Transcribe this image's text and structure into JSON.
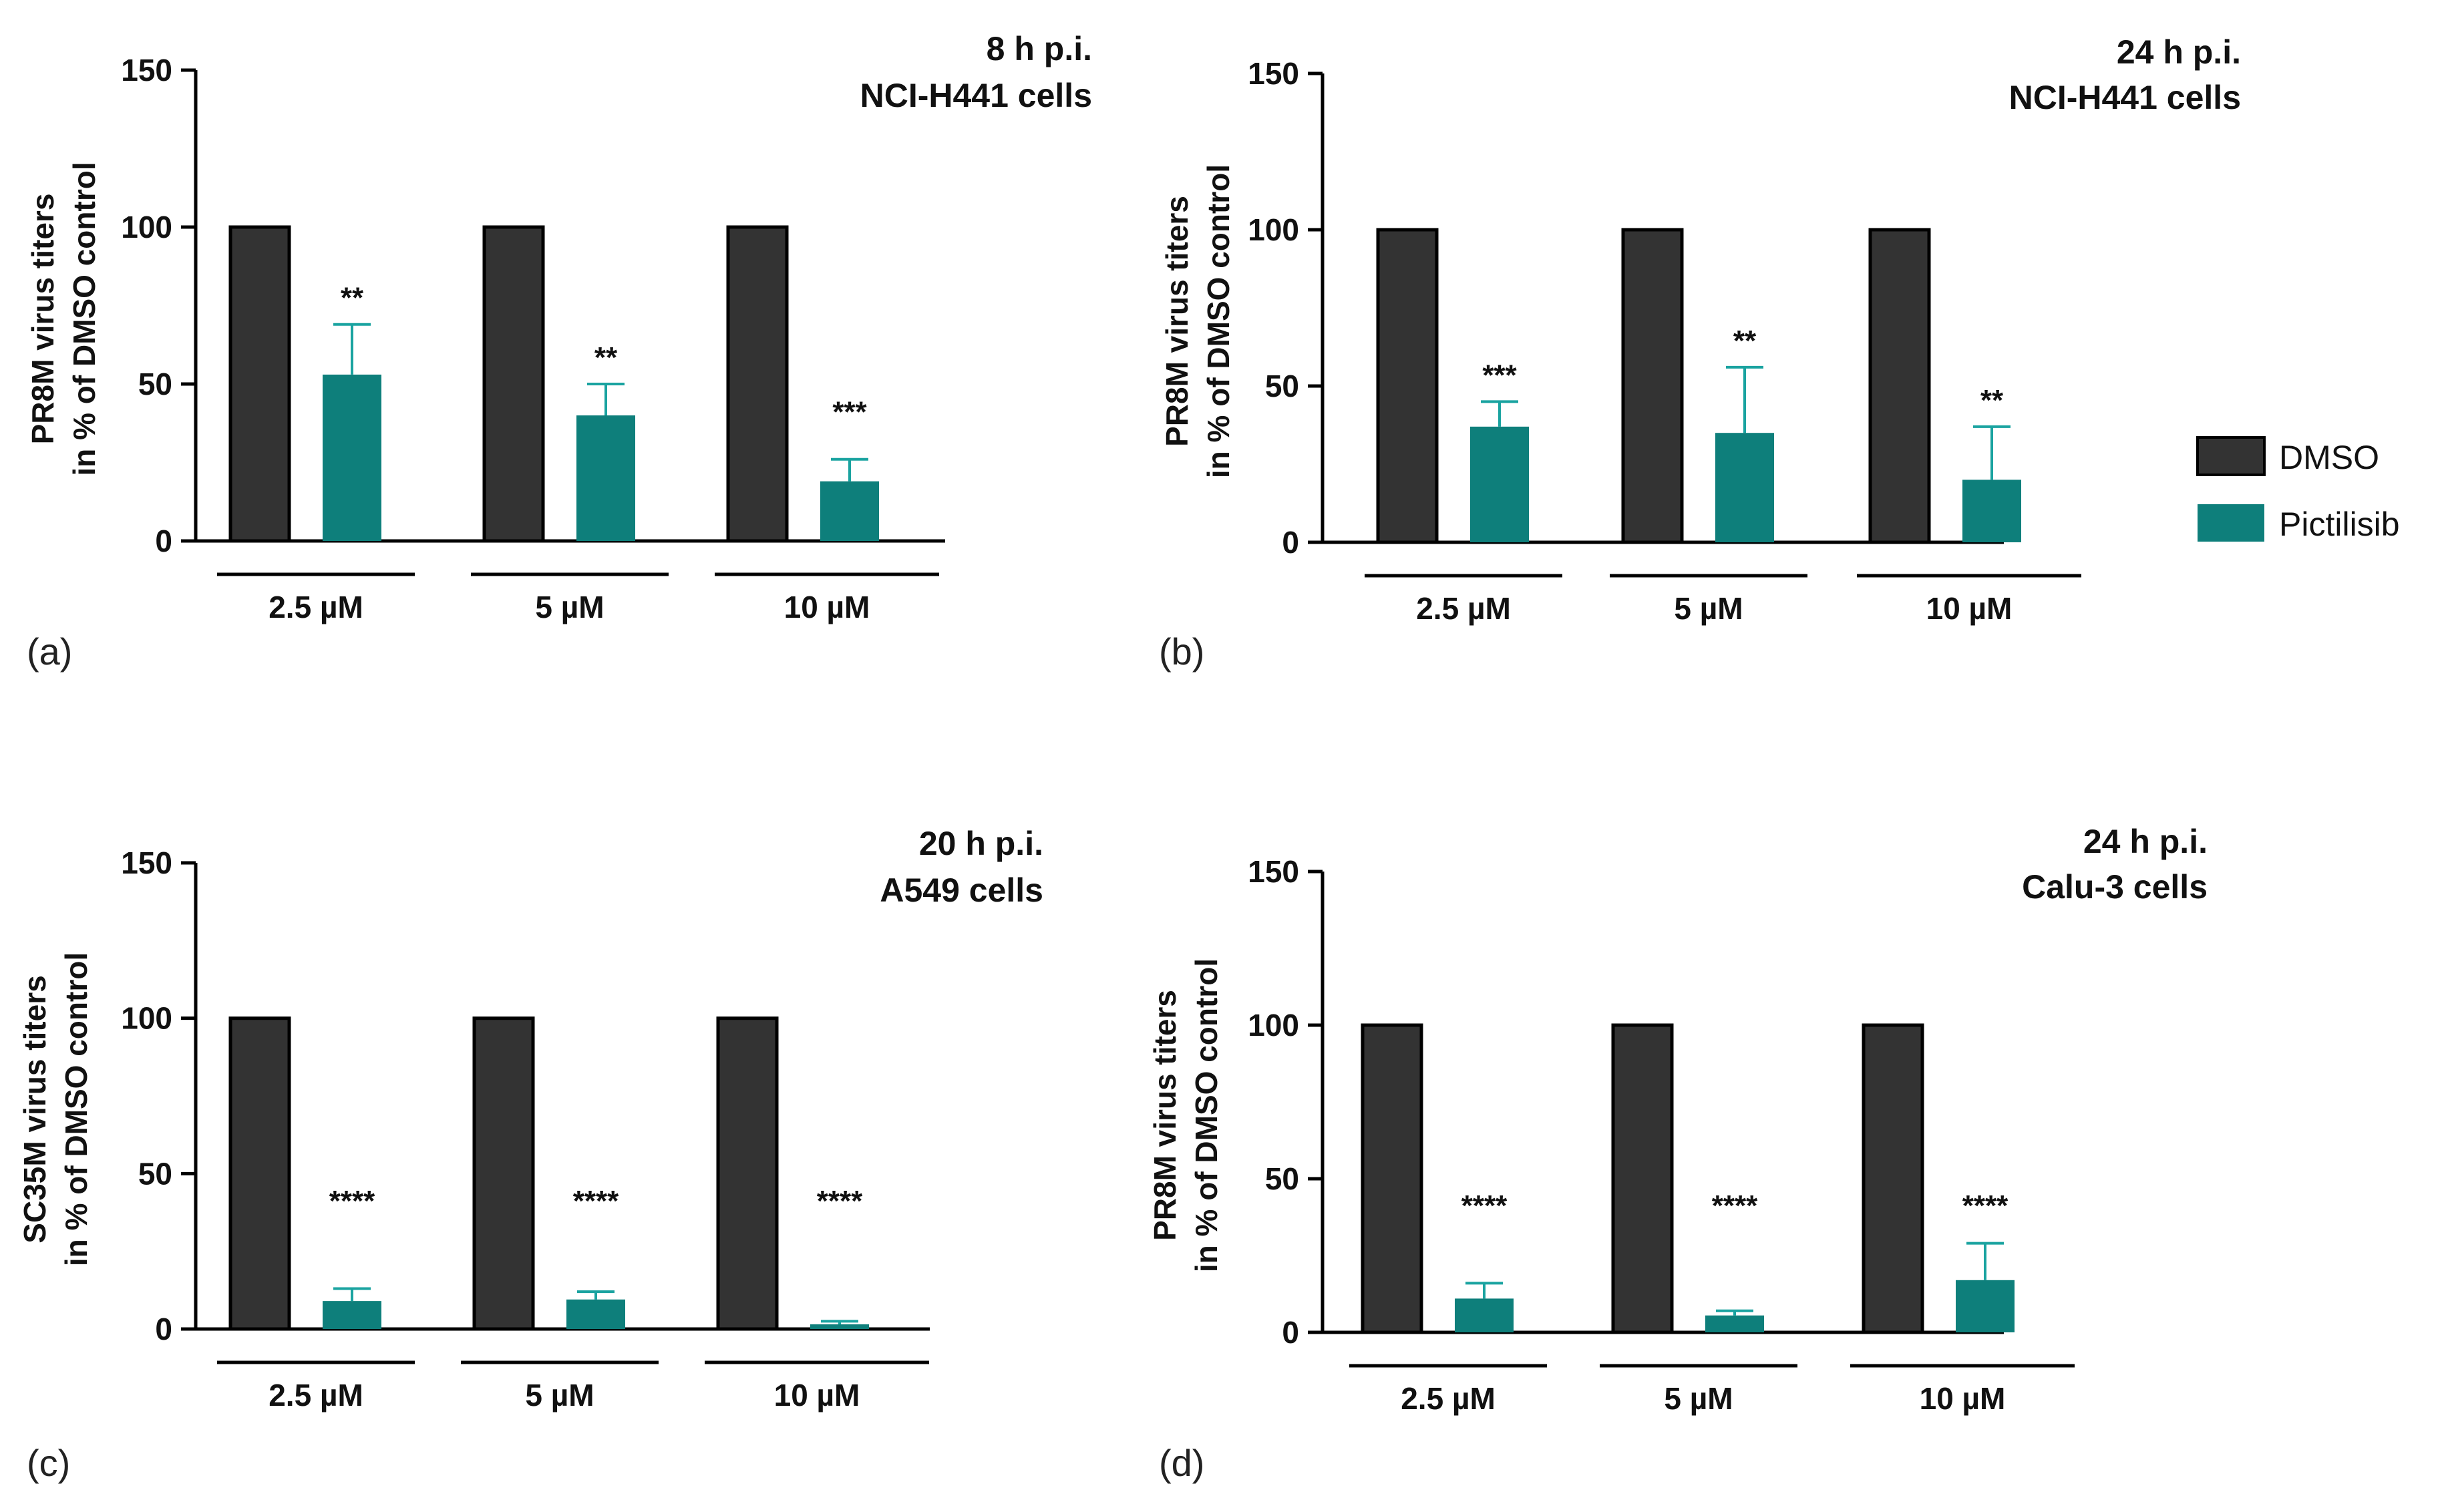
{
  "legend": {
    "items": [
      {
        "label": "DMSO",
        "color": "#333333"
      },
      {
        "label": "Pictilisib",
        "color": "#0e7f7b"
      }
    ]
  },
  "error_color": "#1aa3a0",
  "chart_data": [
    {
      "type": "bar",
      "panel": "(a)",
      "title": [
        "8 h p.i.",
        "NCI-H441 cells"
      ],
      "ylabel": [
        "PR8M virus titers",
        "in % of DMSO control"
      ],
      "ylim": [
        0,
        150
      ],
      "yticks": [
        "0",
        "50",
        "100",
        "150"
      ],
      "groups": [
        "2.5 µM",
        "5 µM",
        "10 µM"
      ],
      "series": [
        {
          "name": "DMSO",
          "values": [
            100,
            100,
            100
          ]
        },
        {
          "name": "Pictilisib",
          "values": [
            53,
            40,
            19
          ],
          "errors": [
            16,
            10,
            7
          ],
          "significance": [
            "**",
            "**",
            "***"
          ]
        }
      ]
    },
    {
      "type": "bar",
      "panel": "(b)",
      "title": [
        "24 h p.i.",
        "NCI-H441 cells"
      ],
      "ylabel": [
        "PR8M virus titers",
        "in % of DMSO control"
      ],
      "ylim": [
        0,
        150
      ],
      "yticks": [
        "0",
        "50",
        "100",
        "150"
      ],
      "groups": [
        "2.5 µM",
        "5 µM",
        "10 µM"
      ],
      "series": [
        {
          "name": "DMSO",
          "values": [
            100,
            100,
            100
          ]
        },
        {
          "name": "Pictilisib",
          "values": [
            37,
            35,
            20
          ],
          "errors": [
            8,
            21,
            17
          ],
          "significance": [
            "***",
            "**",
            "**"
          ]
        }
      ]
    },
    {
      "type": "bar",
      "panel": "(c)",
      "title": [
        "20 h p.i.",
        "A549 cells"
      ],
      "ylabel": [
        "SC35M virus titers",
        "in % of DMSO control"
      ],
      "ylim": [
        0,
        150
      ],
      "yticks": [
        "0",
        "50",
        "100",
        "150"
      ],
      "groups": [
        "2.5 µM",
        "5 µM",
        "10 µM"
      ],
      "series": [
        {
          "name": "DMSO",
          "values": [
            100,
            100,
            100
          ]
        },
        {
          "name": "Pictilisib",
          "values": [
            9,
            9.5,
            1.5
          ],
          "errors": [
            4,
            2.5,
            1
          ],
          "significance": [
            "****",
            "****",
            "****"
          ]
        }
      ]
    },
    {
      "type": "bar",
      "panel": "(d)",
      "title": [
        "24 h p.i.",
        "Calu-3 cells"
      ],
      "ylabel": [
        "PR8M virus titers",
        "in % of DMSO control"
      ],
      "ylim": [
        0,
        150
      ],
      "yticks": [
        "0",
        "50",
        "100",
        "150"
      ],
      "groups": [
        "2.5 µM",
        "5 µM",
        "10 µM"
      ],
      "series": [
        {
          "name": "DMSO",
          "values": [
            100,
            100,
            100
          ]
        },
        {
          "name": "Pictilisib",
          "values": [
            11,
            5.5,
            17
          ],
          "errors": [
            5,
            1.5,
            12
          ],
          "significance": [
            "****",
            "****",
            "****"
          ]
        }
      ]
    }
  ]
}
